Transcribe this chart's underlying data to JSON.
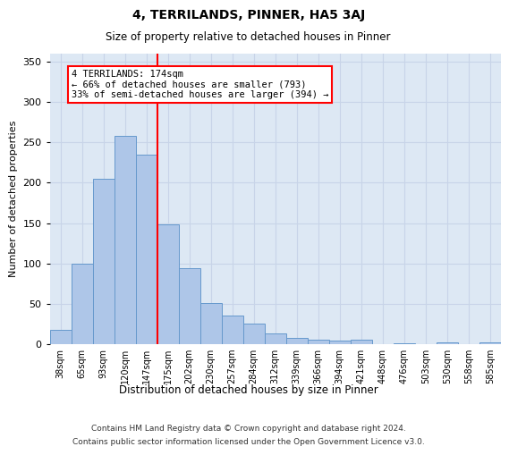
{
  "title": "4, TERRILANDS, PINNER, HA5 3AJ",
  "subtitle": "Size of property relative to detached houses in Pinner",
  "xlabel": "Distribution of detached houses by size in Pinner",
  "ylabel": "Number of detached properties",
  "categories": [
    "38sqm",
    "65sqm",
    "93sqm",
    "120sqm",
    "147sqm",
    "175sqm",
    "202sqm",
    "230sqm",
    "257sqm",
    "284sqm",
    "312sqm",
    "339sqm",
    "366sqm",
    "394sqm",
    "421sqm",
    "448sqm",
    "476sqm",
    "503sqm",
    "530sqm",
    "558sqm",
    "585sqm"
  ],
  "values": [
    18,
    100,
    205,
    258,
    235,
    148,
    94,
    51,
    35,
    25,
    13,
    8,
    6,
    4,
    5,
    0,
    1,
    0,
    2,
    0,
    2
  ],
  "bar_color": "#aec6e8",
  "bar_edge_color": "#6699cc",
  "grid_color": "#c8d4e8",
  "background_color": "#dde8f4",
  "annotation_text": "4 TERRILANDS: 174sqm\n← 66% of detached houses are smaller (793)\n33% of semi-detached houses are larger (394) →",
  "vline_x": 4.5,
  "ylim": [
    0,
    360
  ],
  "yticks": [
    0,
    50,
    100,
    150,
    200,
    250,
    300,
    350
  ],
  "footer_line1": "Contains HM Land Registry data © Crown copyright and database right 2024.",
  "footer_line2": "Contains public sector information licensed under the Open Government Licence v3.0."
}
